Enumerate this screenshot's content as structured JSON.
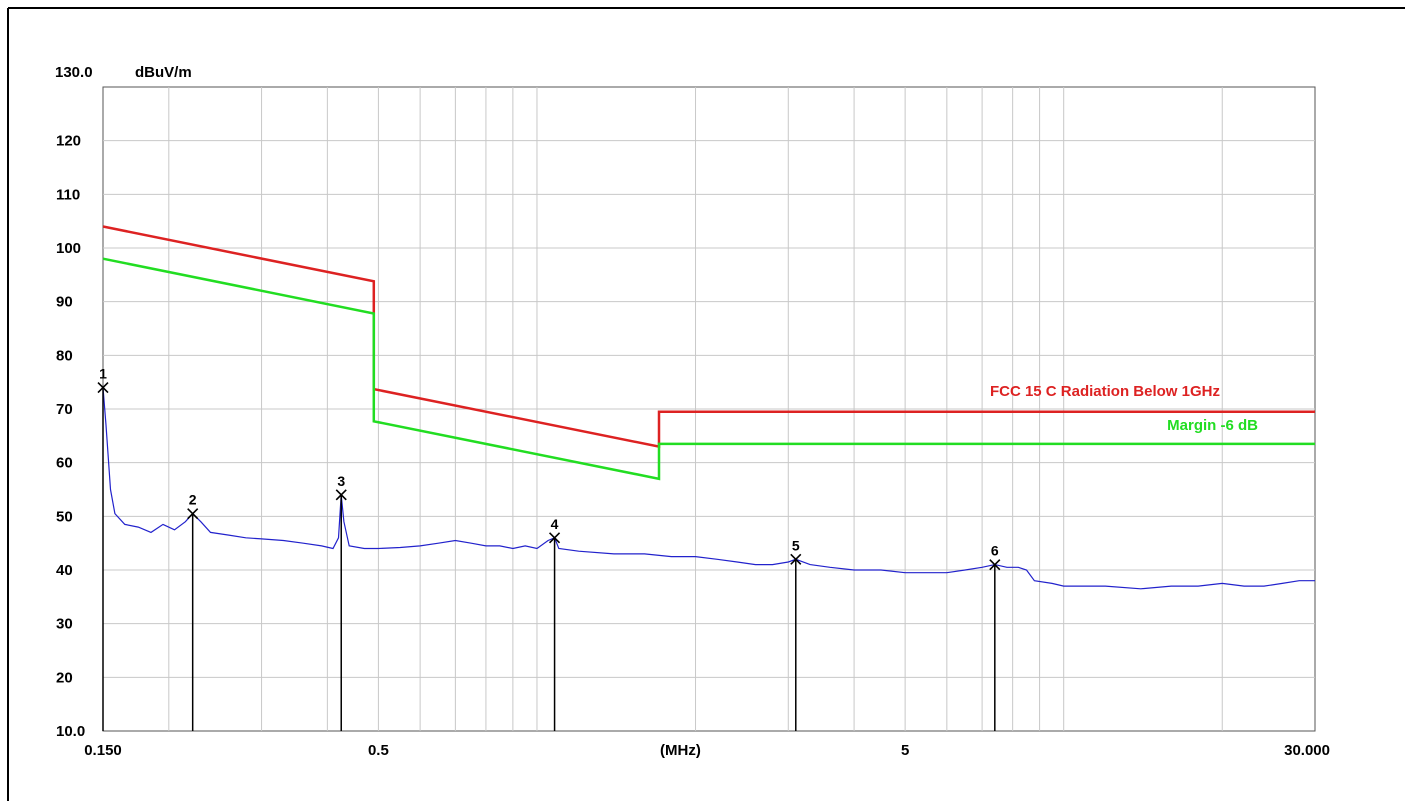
{
  "chart_data": {
    "type": "line",
    "x_scale": "log",
    "x_unit": "(MHz)",
    "xlim": [
      0.15,
      30.0
    ],
    "x_ticks": [
      {
        "value": 0.15,
        "label": "0.150"
      },
      {
        "value": 0.5,
        "label": "0.5"
      },
      {
        "value": 5,
        "label": "5"
      },
      {
        "value": 30.0,
        "label": "30.000"
      }
    ],
    "x_grid": [
      0.2,
      0.3,
      0.4,
      0.5,
      0.6,
      0.7,
      0.8,
      0.9,
      1,
      2,
      3,
      4,
      5,
      6,
      7,
      8,
      9,
      10,
      20
    ],
    "y_unit": "dBuV/m",
    "ylim": [
      10,
      130
    ],
    "y_top_label": "130.0",
    "y_ticks": [
      {
        "value": 120,
        "label": "120"
      },
      {
        "value": 110,
        "label": "110"
      },
      {
        "value": 100,
        "label": "100"
      },
      {
        "value": 90,
        "label": "90"
      },
      {
        "value": 80,
        "label": "80"
      },
      {
        "value": 70,
        "label": "70"
      },
      {
        "value": 60,
        "label": "60"
      },
      {
        "value": 50,
        "label": "50"
      },
      {
        "value": 40,
        "label": "40"
      },
      {
        "value": 30,
        "label": "30"
      },
      {
        "value": 20,
        "label": "20"
      },
      {
        "value": 10,
        "label": "10.0"
      }
    ],
    "grid": true,
    "series": [
      {
        "name": "FCC 15 C Radiation Below 1GHz",
        "color": "#dd2222",
        "label_pos": "right",
        "points": [
          [
            0.15,
            104.0
          ],
          [
            0.49,
            93.8
          ],
          [
            0.49,
            73.7
          ],
          [
            1.705,
            63.0
          ],
          [
            1.705,
            69.5
          ],
          [
            30.0,
            69.5
          ]
        ]
      },
      {
        "name": "Margin -6 dB",
        "color": "#22dd22",
        "label_pos": "right",
        "points": [
          [
            0.15,
            98.0
          ],
          [
            0.49,
            87.8
          ],
          [
            0.49,
            67.7
          ],
          [
            1.705,
            57.0
          ],
          [
            1.705,
            63.5
          ],
          [
            30.0,
            63.5
          ]
        ]
      },
      {
        "name": "",
        "color": "#2222cc",
        "points": [
          [
            0.15,
            74.0
          ],
          [
            0.152,
            67.0
          ],
          [
            0.155,
            55.0
          ],
          [
            0.158,
            50.5
          ],
          [
            0.165,
            48.5
          ],
          [
            0.175,
            48.0
          ],
          [
            0.185,
            47.0
          ],
          [
            0.195,
            48.5
          ],
          [
            0.205,
            47.5
          ],
          [
            0.215,
            49.0
          ],
          [
            0.222,
            50.5
          ],
          [
            0.23,
            49.0
          ],
          [
            0.24,
            47.0
          ],
          [
            0.26,
            46.5
          ],
          [
            0.28,
            46.0
          ],
          [
            0.3,
            45.8
          ],
          [
            0.33,
            45.5
          ],
          [
            0.36,
            45.0
          ],
          [
            0.39,
            44.5
          ],
          [
            0.41,
            44.0
          ],
          [
            0.42,
            46.0
          ],
          [
            0.425,
            54.0
          ],
          [
            0.43,
            49.0
          ],
          [
            0.44,
            44.5
          ],
          [
            0.47,
            44.0
          ],
          [
            0.5,
            44.0
          ],
          [
            0.55,
            44.2
          ],
          [
            0.6,
            44.5
          ],
          [
            0.65,
            45.0
          ],
          [
            0.7,
            45.5
          ],
          [
            0.75,
            45.0
          ],
          [
            0.8,
            44.5
          ],
          [
            0.85,
            44.5
          ],
          [
            0.9,
            44.0
          ],
          [
            0.95,
            44.5
          ],
          [
            1.0,
            44.0
          ],
          [
            1.05,
            45.5
          ],
          [
            1.08,
            46.0
          ],
          [
            1.1,
            44.0
          ],
          [
            1.2,
            43.5
          ],
          [
            1.4,
            43.0
          ],
          [
            1.6,
            43.0
          ],
          [
            1.8,
            42.5
          ],
          [
            2.0,
            42.5
          ],
          [
            2.2,
            42.0
          ],
          [
            2.4,
            41.5
          ],
          [
            2.6,
            41.0
          ],
          [
            2.8,
            41.0
          ],
          [
            3.0,
            41.5
          ],
          [
            3.1,
            42.0
          ],
          [
            3.3,
            41.0
          ],
          [
            3.6,
            40.5
          ],
          [
            4.0,
            40.0
          ],
          [
            4.5,
            40.0
          ],
          [
            5.0,
            39.5
          ],
          [
            5.5,
            39.5
          ],
          [
            6.0,
            39.5
          ],
          [
            6.5,
            40.0
          ],
          [
            7.0,
            40.5
          ],
          [
            7.4,
            41.0
          ],
          [
            7.8,
            40.5
          ],
          [
            8.2,
            40.5
          ],
          [
            8.5,
            40.0
          ],
          [
            8.8,
            38.0
          ],
          [
            9.5,
            37.5
          ],
          [
            10.0,
            37.0
          ],
          [
            12.0,
            37.0
          ],
          [
            14.0,
            36.5
          ],
          [
            16.0,
            37.0
          ],
          [
            18.0,
            37.0
          ],
          [
            20.0,
            37.5
          ],
          [
            22.0,
            37.0
          ],
          [
            24.0,
            37.0
          ],
          [
            26.0,
            37.5
          ],
          [
            28.0,
            38.0
          ],
          [
            30.0,
            38.0
          ]
        ]
      }
    ],
    "markers": [
      {
        "label": "1",
        "x": 0.15,
        "y": 74.0
      },
      {
        "label": "2",
        "x": 0.222,
        "y": 50.5
      },
      {
        "label": "3",
        "x": 0.425,
        "y": 54.0
      },
      {
        "label": "4",
        "x": 1.08,
        "y": 46.0
      },
      {
        "label": "5",
        "x": 3.1,
        "y": 42.0
      },
      {
        "label": "6",
        "x": 7.4,
        "y": 41.0
      }
    ]
  }
}
